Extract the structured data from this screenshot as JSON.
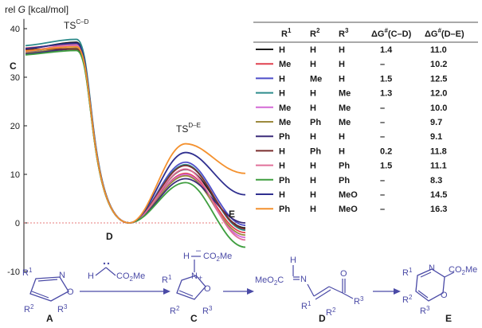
{
  "chart_data": {
    "type": "line",
    "ylabel_prefix": "rel ",
    "ylabel_var": "G",
    "ylabel_unit": " [kcal/mol]",
    "ylim": [
      -10,
      42
    ],
    "yticks": [
      "40",
      "30",
      "20",
      "10",
      "0",
      "-10"
    ],
    "state_labels": {
      "C": "C",
      "D": "D",
      "E": "E"
    },
    "ts_labels": {
      "cd": {
        "main": "TS",
        "sup": "C–D"
      },
      "de": {
        "main": "TS",
        "sup": "D–E"
      }
    },
    "series": [
      {
        "r1": "H",
        "r2": "H",
        "r3": "H",
        "dg_cd": "1.4",
        "dg_de": "11.0",
        "color": "#1c1c1c",
        "C": 35.8,
        "TS1": 37.2,
        "TS2": 11.0,
        "E": -1.0
      },
      {
        "r1": "Me",
        "r2": "H",
        "r3": "H",
        "dg_cd": "–",
        "dg_de": "10.2",
        "color": "#e0404f",
        "C": 36.0,
        "TS1": 36.8,
        "TS2": 10.2,
        "E": -2.0
      },
      {
        "r1": "H",
        "r2": "Me",
        "r3": "H",
        "dg_cd": "1.5",
        "dg_de": "12.5",
        "color": "#4d4dc9",
        "C": 35.2,
        "TS1": 36.7,
        "TS2": 12.5,
        "E": -0.5
      },
      {
        "r1": "H",
        "r2": "H",
        "r3": "Me",
        "dg_cd": "1.3",
        "dg_de": "12.0",
        "color": "#2e8c8c",
        "C": 36.5,
        "TS1": 37.8,
        "TS2": 12.0,
        "E": -1.5
      },
      {
        "r1": "Me",
        "r2": "H",
        "r3": "Me",
        "dg_cd": "–",
        "dg_de": "10.0",
        "color": "#d46ad6",
        "C": 35.5,
        "TS1": 36.5,
        "TS2": 10.0,
        "E": -3.0
      },
      {
        "r1": "Me",
        "r2": "Ph",
        "r3": "Me",
        "dg_cd": "–",
        "dg_de": "9.7",
        "color": "#9c8a3e",
        "C": 35.0,
        "TS1": 36.0,
        "TS2": 9.7,
        "E": -2.5
      },
      {
        "r1": "Ph",
        "r2": "H",
        "r3": "H",
        "dg_cd": "–",
        "dg_de": "9.1",
        "color": "#3b2c7a",
        "C": 34.8,
        "TS1": 35.8,
        "TS2": 9.1,
        "E": 0.0
      },
      {
        "r1": "H",
        "r2": "Ph",
        "r3": "H",
        "dg_cd": "0.2",
        "dg_de": "11.8",
        "color": "#7a2e2e",
        "C": 35.6,
        "TS1": 35.8,
        "TS2": 11.8,
        "E": -1.2
      },
      {
        "r1": "H",
        "r2": "H",
        "r3": "Ph",
        "dg_cd": "1.5",
        "dg_de": "11.1",
        "color": "#e0709a",
        "C": 35.3,
        "TS1": 36.8,
        "TS2": 11.1,
        "E": -3.5
      },
      {
        "r1": "Ph",
        "r2": "H",
        "r3": "Ph",
        "dg_cd": "–",
        "dg_de": "8.3",
        "color": "#3f9e3f",
        "C": 34.6,
        "TS1": 35.5,
        "TS2": 8.3,
        "E": -5.0
      },
      {
        "r1": "H",
        "r2": "H",
        "r3": "MeO",
        "dg_cd": "–",
        "dg_de": "14.5",
        "color": "#2f2f8f",
        "C": 35.9,
        "TS1": 37.0,
        "TS2": 14.5,
        "E": 5.8
      },
      {
        "r1": "Ph",
        "r2": "H",
        "r3": "MeO",
        "dg_cd": "–",
        "dg_de": "16.3",
        "color": "#f4912e",
        "C": 35.4,
        "TS1": 36.3,
        "TS2": 16.3,
        "E": 10.2
      }
    ],
    "table_headers": {
      "r1": {
        "main": "R",
        "sup": "1"
      },
      "r2": {
        "main": "R",
        "sup": "2"
      },
      "r3": {
        "main": "R",
        "sup": "3"
      },
      "dg_cd": {
        "main": "ΔG",
        "sup": "#",
        "tail": "(C–D)"
      },
      "dg_de": {
        "main": "ΔG",
        "sup": "#",
        "tail": "(D–E)"
      }
    }
  },
  "scheme": {
    "A": {
      "label": "A",
      "r1": "R",
      "r1s": "1",
      "r2": "R",
      "r2s": "2",
      "r3": "R",
      "r3s": "3",
      "n": "N",
      "o": "O"
    },
    "carbene": {
      "h": "H",
      "group": "CO",
      "g2": "2",
      "g3": "Me"
    },
    "C": {
      "label": "C",
      "h": "H",
      "group": "CO",
      "g2": "2",
      "g3": "Me",
      "r1": "R",
      "r1s": "1",
      "r2": "R",
      "r2s": "2",
      "r3": "R",
      "r3s": "3",
      "n": "N",
      "plus": "+",
      "o": "O",
      "minus": "–"
    },
    "D": {
      "label": "D",
      "h": "H",
      "ester": "MeO",
      "e2": "2",
      "e3": "C",
      "n": "N",
      "o": "O",
      "r1": "R",
      "r1s": "1",
      "r2": "R",
      "r2s": "2",
      "r3": "R",
      "r3s": "3"
    },
    "E": {
      "label": "E",
      "n": "N",
      "o": "O",
      "group": "CO",
      "g2": "2",
      "g3": "Me",
      "r1": "R",
      "r1s": "1",
      "r2": "R",
      "r2s": "2",
      "r3": "R",
      "r3s": "3"
    }
  }
}
